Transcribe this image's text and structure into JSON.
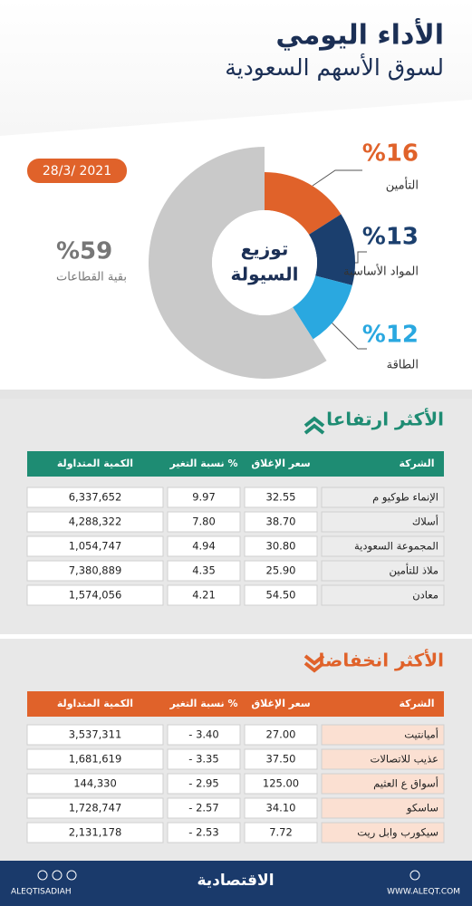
{
  "header": {
    "title": "الأداء اليومي",
    "subtitle": "لسوق الأسهم السعودية",
    "date": "28/3/ 2021"
  },
  "chart_data": {
    "type": "pie",
    "center_label": [
      "توزيع",
      "السيولة"
    ],
    "categories": [
      "التأمين",
      "المواد الأساسية",
      "الطاقة",
      "بقية القطاعات"
    ],
    "values": [
      16,
      13,
      12,
      59
    ],
    "value_labels": [
      "%16",
      "%13",
      "%12",
      "%59"
    ],
    "colors": [
      "#e0622a",
      "#1b3f6e",
      "#2aa8e0",
      "#c9c9c9"
    ]
  },
  "rising": {
    "title": "الأكثر ارتفاعا",
    "columns": [
      "الشركة",
      "سعر الإغلاق",
      "نسبة التغير %",
      "الكمية المتداولة"
    ],
    "rows": [
      [
        "الإنماء طوكيو م",
        "32.55",
        "9.97",
        "6,337,652"
      ],
      [
        "أسلاك",
        "38.70",
        "7.80",
        "4,288,322"
      ],
      [
        "المجموعة السعودية",
        "30.80",
        "4.94",
        "1,054,747"
      ],
      [
        "ملاذ للتأمين",
        "25.90",
        "4.35",
        "7,380,889"
      ],
      [
        "معادن",
        "54.50",
        "4.21",
        "1,574,056"
      ]
    ]
  },
  "falling": {
    "title": "الأكثر انخفاضا",
    "columns": [
      "الشركة",
      "سعر الإغلاق",
      "نسبة التغير %",
      "الكمية المتداولة"
    ],
    "rows": [
      [
        "أميانتيت",
        "27.00",
        "- 3.40",
        "3,537,311"
      ],
      [
        "عذيب للاتصالات",
        "37.50",
        "- 3.35",
        "1,681,619"
      ],
      [
        "أسواق ع العثيم",
        "125.00",
        "- 2.95",
        "144,330"
      ],
      [
        "ساسكو",
        "34.10",
        "- 2.57",
        "1,728,747"
      ],
      [
        "سيكورب وابل ريت",
        "7.72",
        "- 2.53",
        "2,131,178"
      ]
    ]
  },
  "footer": {
    "handle": "ALEQTISADIAH",
    "logo": "الاقتصادية",
    "url": "WWW.ALEQT.COM"
  }
}
